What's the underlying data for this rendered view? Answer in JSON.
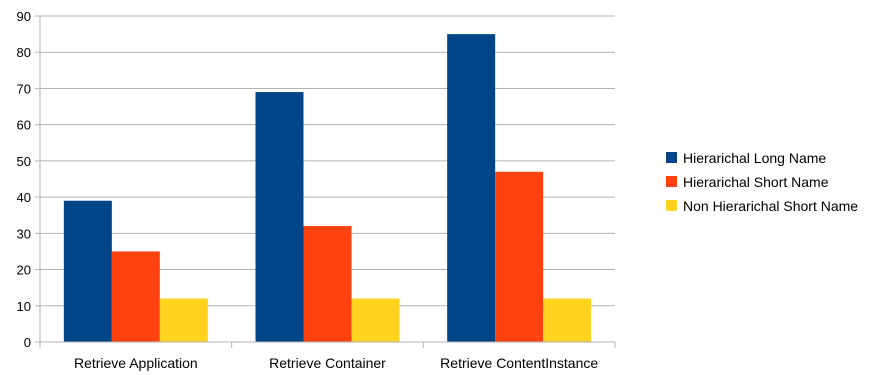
{
  "chart_data": {
    "type": "bar",
    "title": "",
    "xlabel": "",
    "ylabel": "",
    "categories": [
      "Retrieve Application",
      "Retrieve Container",
      "Retrieve ContentInstance"
    ],
    "series": [
      {
        "name": "Hierarichal Long Name",
        "color": "#004586",
        "values": [
          39,
          69,
          85
        ]
      },
      {
        "name": "Hierarichal Short Name",
        "color": "#ff420e",
        "values": [
          25,
          32,
          47
        ]
      },
      {
        "name": "Non Hierarichal Short Name",
        "color": "#ffd320",
        "values": [
          12,
          12,
          12
        ]
      }
    ],
    "ylim": [
      0,
      90
    ],
    "yticks": [
      0,
      10,
      20,
      30,
      40,
      50,
      60,
      70,
      80,
      90
    ],
    "grid": true,
    "legend_position": "right"
  }
}
